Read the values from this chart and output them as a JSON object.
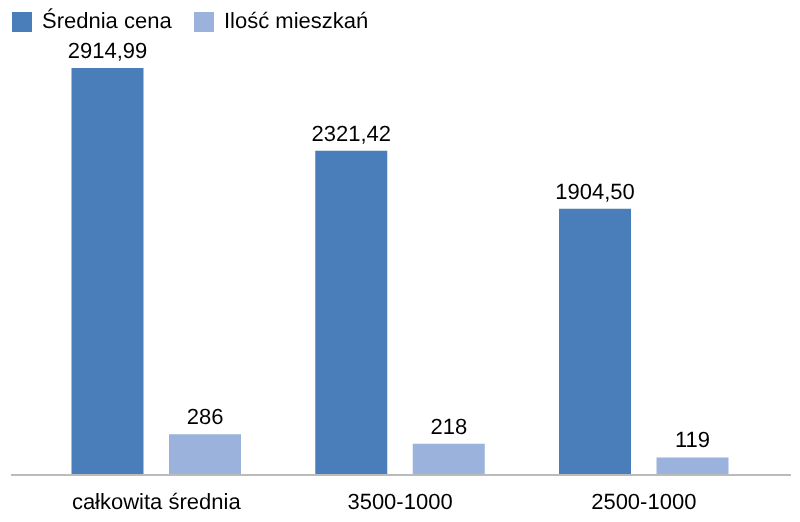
{
  "chart_data": {
    "type": "bar",
    "categories": [
      "całkowita średnia",
      "3500-1000",
      "2500-1000"
    ],
    "series": [
      {
        "name": "Średnia cena",
        "color": "#4a7ebb",
        "values": [
          2914.99,
          2321.42,
          1904.5
        ],
        "value_labels": [
          "2914,99",
          "2321,42",
          "1904,50"
        ]
      },
      {
        "name": "Ilość mieszkań",
        "color": "#9bb3dc",
        "values": [
          286,
          218,
          119
        ],
        "value_labels": [
          "286",
          "218",
          "119"
        ]
      }
    ],
    "legend": "top",
    "grid": false
  }
}
